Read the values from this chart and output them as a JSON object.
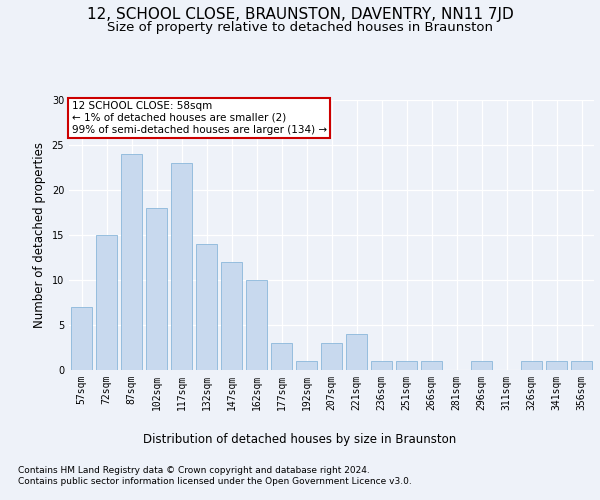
{
  "title": "12, SCHOOL CLOSE, BRAUNSTON, DAVENTRY, NN11 7JD",
  "subtitle": "Size of property relative to detached houses in Braunston",
  "xlabel": "Distribution of detached houses by size in Braunston",
  "ylabel": "Number of detached properties",
  "categories": [
    "57sqm",
    "72sqm",
    "87sqm",
    "102sqm",
    "117sqm",
    "132sqm",
    "147sqm",
    "162sqm",
    "177sqm",
    "192sqm",
    "207sqm",
    "221sqm",
    "236sqm",
    "251sqm",
    "266sqm",
    "281sqm",
    "296sqm",
    "311sqm",
    "326sqm",
    "341sqm",
    "356sqm"
  ],
  "values": [
    7,
    15,
    24,
    18,
    23,
    14,
    12,
    10,
    3,
    1,
    3,
    4,
    1,
    1,
    1,
    0,
    1,
    0,
    1,
    1,
    1
  ],
  "bar_color": "#c8d9ee",
  "bar_edge_color": "#7aaed6",
  "annotation_box_color": "#ffffff",
  "annotation_border_color": "#cc0000",
  "annotation_text_line1": "12 SCHOOL CLOSE: 58sqm",
  "annotation_text_line2": "← 1% of detached houses are smaller (2)",
  "annotation_text_line3": "99% of semi-detached houses are larger (134) →",
  "footer_line1": "Contains HM Land Registry data © Crown copyright and database right 2024.",
  "footer_line2": "Contains public sector information licensed under the Open Government Licence v3.0.",
  "ylim": [
    0,
    30
  ],
  "yticks": [
    0,
    5,
    10,
    15,
    20,
    25,
    30
  ],
  "background_color": "#eef2f9",
  "plot_bg_color": "#eef2f9",
  "grid_color": "#ffffff",
  "title_fontsize": 11,
  "subtitle_fontsize": 9.5,
  "axis_label_fontsize": 8.5,
  "tick_fontsize": 7,
  "footer_fontsize": 6.5,
  "annotation_fontsize": 7.5
}
